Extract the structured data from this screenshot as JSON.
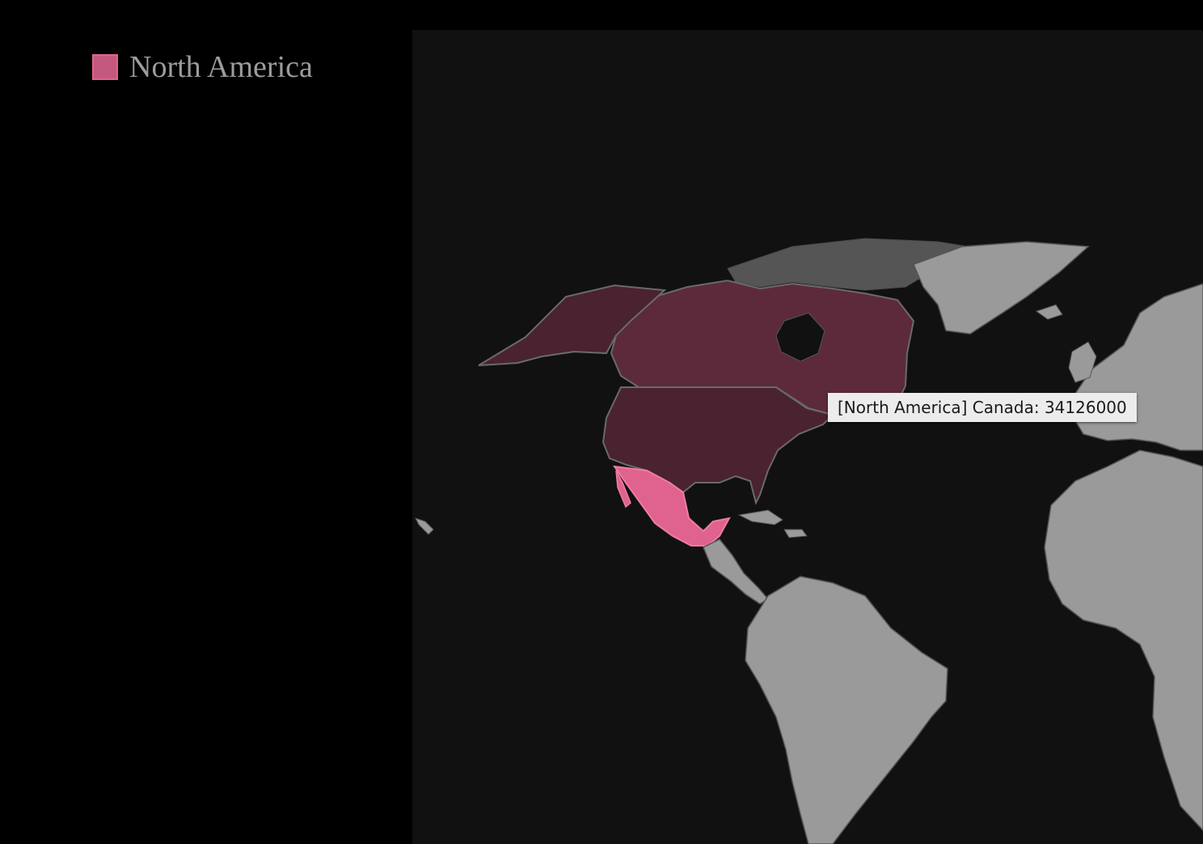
{
  "legend": {
    "label": "North America",
    "color": "#c4587e"
  },
  "tooltip": {
    "text": "[North America] Canada: 34126000"
  },
  "map": {
    "highlighted_region": "North America",
    "hovered_country": "Canada",
    "countries": [
      {
        "name": "Canada",
        "region": "North America",
        "fill": "#5c2a3b"
      },
      {
        "name": "United States",
        "region": "North America",
        "fill": "#4a2230"
      },
      {
        "name": "Mexico",
        "region": "North America",
        "fill": "#e0628e"
      },
      {
        "name": "Greenland",
        "region": "other",
        "fill": "#9a9a9a"
      }
    ],
    "colors": {
      "background": "#111111",
      "other_land": "#9a9a9a",
      "arctic_islands": "#555555",
      "border": "#555555"
    }
  }
}
